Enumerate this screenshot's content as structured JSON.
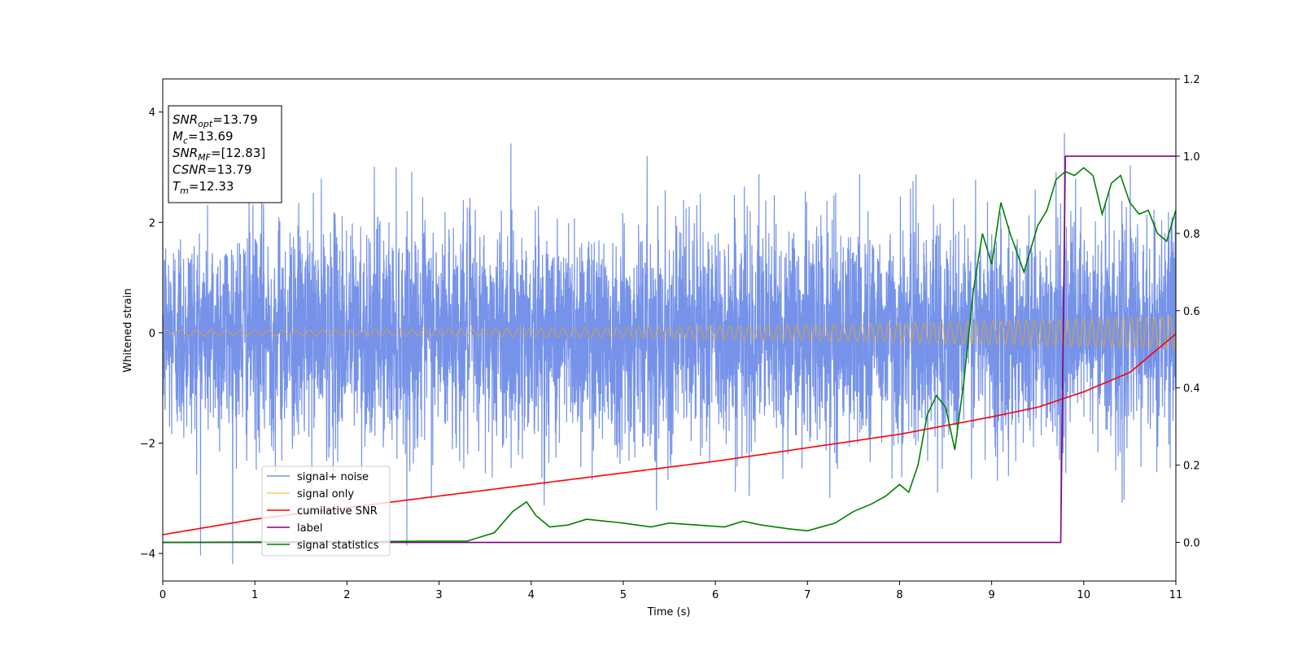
{
  "chart_data": {
    "type": "line",
    "title": "",
    "xlabel": "Time (s)",
    "ylabel": "Whitened strain",
    "xlim": [
      0,
      11
    ],
    "ylim_left": [
      -4.5,
      4.6
    ],
    "ylim_right": [
      -0.1,
      1.2
    ],
    "x_ticks": [
      0,
      1,
      2,
      3,
      4,
      5,
      6,
      7,
      8,
      9,
      10,
      11
    ],
    "y_ticks_left": [
      -4,
      -2,
      0,
      2,
      4
    ],
    "y_ticks_right": [
      0.0,
      0.2,
      0.4,
      0.6,
      0.8,
      1.0,
      1.2
    ],
    "grid": false,
    "legend_position": "lower-left",
    "colors": {
      "signal_noise": "#4169e1",
      "signal_only": "#ffa500",
      "cumulative_snr": "#ff0000",
      "label": "#800080",
      "signal_statistics": "#008000"
    },
    "annotation": [
      {
        "base": "SNR",
        "sub": "opt",
        "value": "=13.79"
      },
      {
        "base": "M",
        "sub": "c",
        "value": "=13.69"
      },
      {
        "base": "SNR",
        "sub": "MF",
        "value": "=[12.83]"
      },
      {
        "base": "CSNR",
        "sub": "",
        "value": "=13.79"
      },
      {
        "base": "T",
        "sub": "m",
        "value": "=12.33"
      }
    ],
    "series": [
      {
        "name": "signal+ noise",
        "axis": "left",
        "style": "noise band, approx. std 1.0, amplitude up to about 4",
        "std": 1.0
      },
      {
        "name": "signal only",
        "axis": "left",
        "style": "chirp oscillation growing in amplitude",
        "amplitude_start": 0.05,
        "amplitude_end": 0.3,
        "freq_start_hz": 6,
        "freq_end_hz": 12
      },
      {
        "name": "cumilative SNR",
        "axis": "right",
        "x": [
          0,
          1,
          2,
          3,
          4,
          5,
          6,
          7,
          8,
          9,
          9.5,
          10,
          10.5,
          11
        ],
        "y": [
          0.02,
          0.06,
          0.09,
          0.12,
          0.15,
          0.18,
          0.21,
          0.245,
          0.28,
          0.325,
          0.35,
          0.39,
          0.44,
          0.54
        ]
      },
      {
        "name": "label",
        "axis": "right",
        "x": [
          0,
          9.75,
          9.8,
          11
        ],
        "y": [
          0,
          0,
          1.0,
          1.0
        ]
      },
      {
        "name": "signal statistics",
        "axis": "right",
        "x": [
          0,
          2.8,
          3.3,
          3.6,
          3.8,
          3.95,
          4.05,
          4.2,
          4.4,
          4.6,
          4.8,
          5.0,
          5.3,
          5.5,
          5.8,
          6.1,
          6.3,
          6.5,
          6.8,
          7.0,
          7.3,
          7.5,
          7.7,
          7.85,
          8.0,
          8.1,
          8.2,
          8.3,
          8.4,
          8.5,
          8.6,
          8.7,
          8.8,
          8.9,
          9.0,
          9.1,
          9.2,
          9.35,
          9.5,
          9.6,
          9.7,
          9.8,
          9.9,
          10.0,
          10.1,
          10.2,
          10.3,
          10.4,
          10.5,
          10.6,
          10.7,
          10.8,
          10.9,
          11.0
        ],
        "y": [
          0.0,
          0.003,
          0.003,
          0.025,
          0.08,
          0.105,
          0.07,
          0.04,
          0.045,
          0.06,
          0.055,
          0.05,
          0.04,
          0.05,
          0.045,
          0.04,
          0.055,
          0.045,
          0.035,
          0.03,
          0.05,
          0.08,
          0.1,
          0.12,
          0.15,
          0.13,
          0.2,
          0.33,
          0.38,
          0.35,
          0.24,
          0.42,
          0.65,
          0.8,
          0.72,
          0.88,
          0.8,
          0.7,
          0.82,
          0.86,
          0.94,
          0.96,
          0.95,
          0.97,
          0.95,
          0.85,
          0.93,
          0.95,
          0.88,
          0.85,
          0.86,
          0.8,
          0.78,
          0.86
        ]
      }
    ]
  }
}
